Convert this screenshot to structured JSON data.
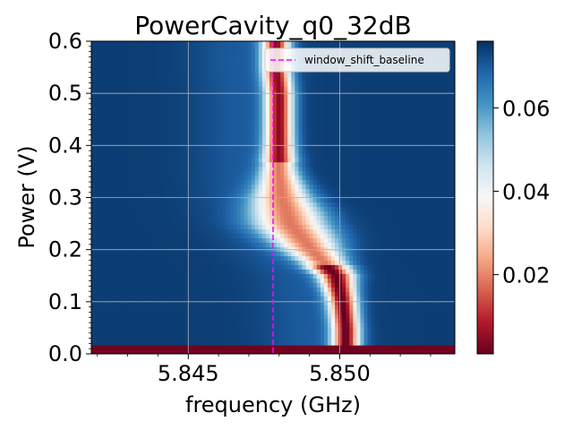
{
  "chart_data": {
    "type": "heatmap",
    "title": "PowerCavity_q0_32dB",
    "xlabel": "frequency (GHz)",
    "ylabel": "Power (V)",
    "xlim": [
      5.8418,
      5.8538
    ],
    "ylim": [
      0.0,
      0.6
    ],
    "xticks": [
      5.845,
      5.85
    ],
    "xtick_labels": [
      "5.845",
      "5.850"
    ],
    "yticks": [
      0.0,
      0.1,
      0.2,
      0.3,
      0.4,
      0.5,
      0.6
    ],
    "ytick_labels": [
      "0.0",
      "0.1",
      "0.2",
      "0.3",
      "0.4",
      "0.5",
      "0.6"
    ],
    "grid": true,
    "colormap": "RdBu",
    "colorbar": {
      "range": [
        0.001,
        0.076
      ],
      "ticks": [
        0.02,
        0.04,
        0.06
      ],
      "tick_labels": [
        "0.02",
        "0.04",
        "0.06"
      ]
    },
    "legend": {
      "placement": "top-right",
      "entries": [
        {
          "label": "window_shift_baseline",
          "color": "#ff00ff",
          "linestyle": "dashed"
        }
      ]
    },
    "vline": {
      "x": 5.8478,
      "color": "#ff00ff"
    },
    "resonance_trace": [
      {
        "power": 0.0,
        "frequency": 5.8502
      },
      {
        "power": 0.05,
        "frequency": 5.8502
      },
      {
        "power": 0.1,
        "frequency": 5.8501
      },
      {
        "power": 0.15,
        "frequency": 5.8499
      },
      {
        "power": 0.2,
        "frequency": 5.8491
      },
      {
        "power": 0.25,
        "frequency": 5.8484
      },
      {
        "power": 0.3,
        "frequency": 5.8481
      },
      {
        "power": 0.35,
        "frequency": 5.848
      },
      {
        "power": 0.4,
        "frequency": 5.848
      },
      {
        "power": 0.45,
        "frequency": 5.848
      },
      {
        "power": 0.5,
        "frequency": 5.848
      },
      {
        "power": 0.55,
        "frequency": 5.8479
      },
      {
        "power": 0.6,
        "frequency": 5.8479
      }
    ],
    "background_value": 0.074,
    "minimum_value": 0.003
  }
}
